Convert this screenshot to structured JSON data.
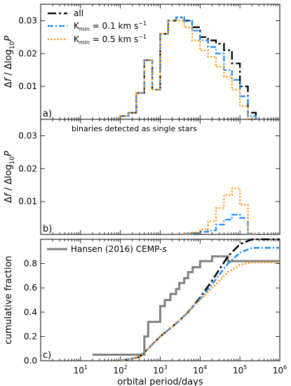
{
  "chart_data": [
    {
      "panel": "a",
      "type": "line",
      "step": true,
      "xscale": "log",
      "xlim": [
        1,
        1000000
      ],
      "ylim": [
        0,
        0.035
      ],
      "ylabel": "Δf / Δlog10P",
      "panel_label": "a)",
      "yticks": [
        0.01,
        0.02,
        0.03
      ],
      "ytick_labels": [
        "0.01",
        "0.02",
        "0.03"
      ],
      "legend": {
        "placement": "top-left",
        "entries": [
          {
            "label": "all",
            "series": "all"
          },
          {
            "label": "K_min = 0.1 km s^-1",
            "series": "k01"
          },
          {
            "label": "K_min = 0.5 km s^-1",
            "series": "k05"
          }
        ]
      },
      "bin_edges_log": [
        2.0,
        2.2,
        2.4,
        2.6,
        2.8,
        3.0,
        3.2,
        3.4,
        3.6,
        3.8,
        4.0,
        4.2,
        4.4,
        4.6,
        4.8,
        5.0,
        5.2,
        5.4
      ],
      "series": [
        {
          "key": "all",
          "color": "#000000",
          "dash": "12,4,3,4",
          "values": [
            0.001,
            0.002,
            0.008,
            0.018,
            0.009,
            0.026,
            0.03,
            0.031,
            0.03,
            0.028,
            0.025,
            0.024,
            0.023,
            0.021,
            0.017,
            0.01,
            0.002
          ]
        },
        {
          "key": "k01",
          "color": "#1e90ff",
          "dash": "8,3,2,3",
          "values": [
            0.001,
            0.002,
            0.008,
            0.018,
            0.009,
            0.026,
            0.03,
            0.031,
            0.03,
            0.027,
            0.024,
            0.022,
            0.02,
            0.015,
            0.012,
            0.007,
            0.001
          ]
        },
        {
          "key": "k05",
          "color": "#ff8c00",
          "dash": "2,2.6",
          "values": [
            0.001,
            0.002,
            0.008,
            0.018,
            0.009,
            0.026,
            0.03,
            0.03,
            0.028,
            0.024,
            0.021,
            0.019,
            0.016,
            0.013,
            0.009,
            0.004,
            0.0
          ]
        }
      ]
    },
    {
      "panel": "b",
      "type": "line",
      "step": true,
      "xscale": "log",
      "xlim": [
        1,
        1000000
      ],
      "ylim": [
        0,
        0.035
      ],
      "ylabel": "Δf / Δlog10P",
      "panel_label": "b)",
      "title": "binaries detected as single stars",
      "yticks": [
        0.01,
        0.02,
        0.03
      ],
      "ytick_labels": [
        "0.01",
        "0.02",
        "0.03"
      ],
      "bin_edges_log": [
        3.6,
        3.8,
        4.0,
        4.2,
        4.4,
        4.6,
        4.8,
        5.0,
        5.2,
        5.4
      ],
      "series": [
        {
          "key": "k01",
          "color": "#1e90ff",
          "dash": "8,3,2,3",
          "values": [
            0.0002,
            0.0004,
            0.0008,
            0.0012,
            0.003,
            0.0045,
            0.006,
            0.005,
            0.0002
          ]
        },
        {
          "key": "k05",
          "color": "#ff8c00",
          "dash": "2,2.6",
          "values": [
            0.0003,
            0.0006,
            0.0015,
            0.004,
            0.008,
            0.012,
            0.014,
            0.009,
            0.0003
          ]
        }
      ]
    },
    {
      "panel": "c",
      "type": "line",
      "xscale": "log",
      "xlim": [
        1,
        1000000
      ],
      "ylim": [
        0,
        1.0
      ],
      "ylabel": "cumulative fraction",
      "xlabel": "orbital period/days",
      "panel_label": "c)",
      "yticks": [
        0.0,
        0.2,
        0.4,
        0.6,
        0.8
      ],
      "ytick_labels": [
        "0.0",
        "0.2",
        "0.4",
        "0.6",
        "0.8"
      ],
      "xticks": [
        1,
        2,
        3,
        4,
        5,
        6
      ],
      "xtick_labels": [
        "10^1",
        "10^2",
        "10^3",
        "10^4",
        "10^5",
        "10^6"
      ],
      "legend": {
        "placement": "top-left",
        "entries": [
          {
            "label": "Hansen (2016) CEMP-s",
            "series": "hansen"
          }
        ]
      },
      "series": [
        {
          "key": "hansen",
          "color": "#808080",
          "dash": "",
          "width": 3,
          "step": true,
          "x": [
            20,
            300,
            400,
            500,
            800,
            1000,
            1300,
            1800,
            2500,
            3000,
            4000,
            5000,
            6500,
            8000,
            10000,
            20000,
            30000,
            50000,
            200000,
            1000000
          ],
          "y": [
            0.05,
            0.05,
            0.2,
            0.32,
            0.32,
            0.45,
            0.5,
            0.55,
            0.59,
            0.64,
            0.68,
            0.73,
            0.77,
            0.77,
            0.82,
            0.86,
            0.86,
            0.82,
            0.82,
            0.82
          ]
        },
        {
          "key": "all",
          "color": "#000000",
          "dash": "12,4,3,4",
          "width": 2.5,
          "x": [
            100,
            300,
            500,
            1000,
            2000,
            3000,
            5000,
            10000,
            20000,
            50000,
            100000,
            200000,
            400000,
            1000000
          ],
          "y": [
            0.0,
            0.03,
            0.1,
            0.2,
            0.28,
            0.33,
            0.4,
            0.52,
            0.66,
            0.86,
            0.96,
            1.0,
            1.0,
            1.0
          ]
        },
        {
          "key": "k01",
          "color": "#1e90ff",
          "dash": "8,3,2,3",
          "width": 2.5,
          "x": [
            100,
            300,
            500,
            1000,
            2000,
            3000,
            5000,
            10000,
            20000,
            50000,
            100000,
            200000,
            400000,
            1000000
          ],
          "y": [
            0.0,
            0.03,
            0.1,
            0.2,
            0.28,
            0.33,
            0.4,
            0.51,
            0.63,
            0.8,
            0.89,
            0.93,
            0.93,
            0.93
          ]
        },
        {
          "key": "k05",
          "color": "#ff8c00",
          "dash": "2,2.6",
          "width": 2.5,
          "x": [
            100,
            300,
            500,
            1000,
            2000,
            3000,
            5000,
            10000,
            20000,
            50000,
            100000,
            200000,
            400000,
            1000000
          ],
          "y": [
            0.0,
            0.03,
            0.1,
            0.2,
            0.28,
            0.33,
            0.4,
            0.5,
            0.6,
            0.73,
            0.79,
            0.81,
            0.81,
            0.81
          ]
        }
      ]
    }
  ]
}
